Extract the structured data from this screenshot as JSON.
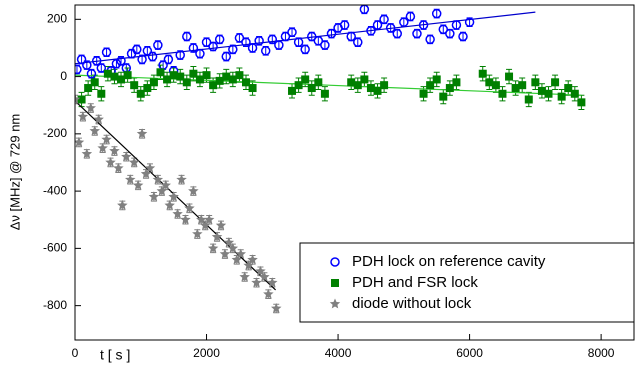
{
  "chart_data": {
    "type": "scatter",
    "x_label": "t [ s ]",
    "y_label": "Δν [MHz] @ 729 nm",
    "xlim": [
      0,
      8500
    ],
    "ylim": [
      -920,
      250
    ],
    "xticks": [
      0,
      2000,
      4000,
      6000,
      8000
    ],
    "yticks": [
      -800,
      -600,
      -400,
      -200,
      0,
      200
    ],
    "legend": "lower right",
    "series": [
      {
        "name": "PDH lock on reference cavity",
        "color": "#0000ff",
        "marker": "circle",
        "error": 15,
        "x": [
          30,
          100,
          180,
          250,
          330,
          400,
          480,
          550,
          630,
          700,
          780,
          860,
          940,
          1020,
          1100,
          1180,
          1260,
          1340,
          1420,
          1500,
          1600,
          1700,
          1800,
          1900,
          2000,
          2100,
          2200,
          2300,
          2400,
          2500,
          2600,
          2700,
          2800,
          2900,
          3000,
          3100,
          3200,
          3300,
          3400,
          3500,
          3600,
          3700,
          3800,
          3900,
          4000,
          4100,
          4200,
          4300,
          4400,
          4500,
          4600,
          4700,
          4800,
          4900,
          5000,
          5100,
          5200,
          5300,
          5400,
          5500,
          5600,
          5700,
          5800,
          5900,
          6000
        ],
        "y": [
          25,
          60,
          40,
          10,
          55,
          30,
          85,
          20,
          45,
          55,
          30,
          80,
          95,
          60,
          90,
          70,
          110,
          40,
          60,
          20,
          75,
          140,
          100,
          80,
          120,
          105,
          130,
          70,
          95,
          135,
          120,
          100,
          125,
          90,
          130,
          110,
          140,
          155,
          120,
          95,
          140,
          125,
          110,
          150,
          170,
          180,
          140,
          120,
          235,
          160,
          180,
          200,
          170,
          150,
          190,
          210,
          150,
          180,
          130,
          220,
          165,
          150,
          180,
          140,
          190
        ]
      },
      {
        "name": "PDH and FSR lock",
        "color": "#008000",
        "marker": "square",
        "error": 25,
        "x": [
          100,
          200,
          300,
          400,
          500,
          600,
          700,
          800,
          900,
          1000,
          1100,
          1200,
          1300,
          1400,
          1500,
          1600,
          1700,
          1800,
          1900,
          2000,
          2100,
          2200,
          2300,
          2400,
          2500,
          2600,
          2700,
          3300,
          3400,
          3500,
          3600,
          3700,
          3800,
          4200,
          4300,
          4400,
          4500,
          4600,
          4700,
          5300,
          5400,
          5500,
          5600,
          5700,
          5800,
          6200,
          6300,
          6400,
          6500,
          6600,
          6700,
          6800,
          6900,
          7000,
          7100,
          7200,
          7300,
          7400,
          7500,
          7600,
          7700
        ],
        "y": [
          -80,
          -40,
          -20,
          -60,
          10,
          0,
          -10,
          5,
          -30,
          -60,
          -40,
          -20,
          15,
          -10,
          5,
          0,
          -20,
          10,
          -10,
          5,
          -30,
          -15,
          0,
          -10,
          5,
          -20,
          -40,
          -50,
          -30,
          -10,
          -40,
          -20,
          -60,
          -20,
          -30,
          -10,
          -40,
          -50,
          -30,
          -60,
          -30,
          -10,
          -70,
          -40,
          -20,
          10,
          -20,
          -30,
          -60,
          0,
          -40,
          -30,
          -80,
          -20,
          -50,
          -60,
          -20,
          -70,
          -40,
          -60,
          -90
        ]
      },
      {
        "name": "diode without lock",
        "color": "#808080",
        "marker": "star",
        "error": 15,
        "x": [
          0,
          60,
          120,
          180,
          240,
          300,
          360,
          420,
          480,
          540,
          600,
          660,
          720,
          780,
          840,
          900,
          960,
          1020,
          1080,
          1140,
          1200,
          1260,
          1320,
          1380,
          1440,
          1500,
          1560,
          1620,
          1680,
          1740,
          1800,
          1860,
          1920,
          1980,
          2040,
          2100,
          2160,
          2220,
          2280,
          2340,
          2400,
          2460,
          2520,
          2580,
          2640,
          2700,
          2760,
          2820,
          2880,
          2940,
          3000,
          3060
        ],
        "y": [
          -80,
          -230,
          -140,
          -270,
          -110,
          -190,
          -150,
          -250,
          -220,
          -300,
          -260,
          -320,
          -450,
          -280,
          -360,
          -300,
          -380,
          -200,
          -340,
          -320,
          -420,
          -360,
          -400,
          -380,
          -450,
          -420,
          -480,
          -360,
          -500,
          -460,
          -400,
          -550,
          -500,
          -520,
          -500,
          -600,
          -560,
          -520,
          -620,
          -580,
          -600,
          -640,
          -620,
          -700,
          -660,
          -640,
          -720,
          -680,
          -700,
          -760,
          -720,
          -810
        ]
      }
    ],
    "fits": [
      {
        "color": "#0000cc",
        "x": [
          0,
          7000
        ],
        "y": [
          45,
          225
        ]
      },
      {
        "color": "#33cc33",
        "x": [
          0,
          7700
        ],
        "y": [
          5,
          -65
        ]
      },
      {
        "color": "#000000",
        "x": [
          0,
          3050
        ],
        "y": [
          -85,
          -745
        ]
      }
    ]
  }
}
